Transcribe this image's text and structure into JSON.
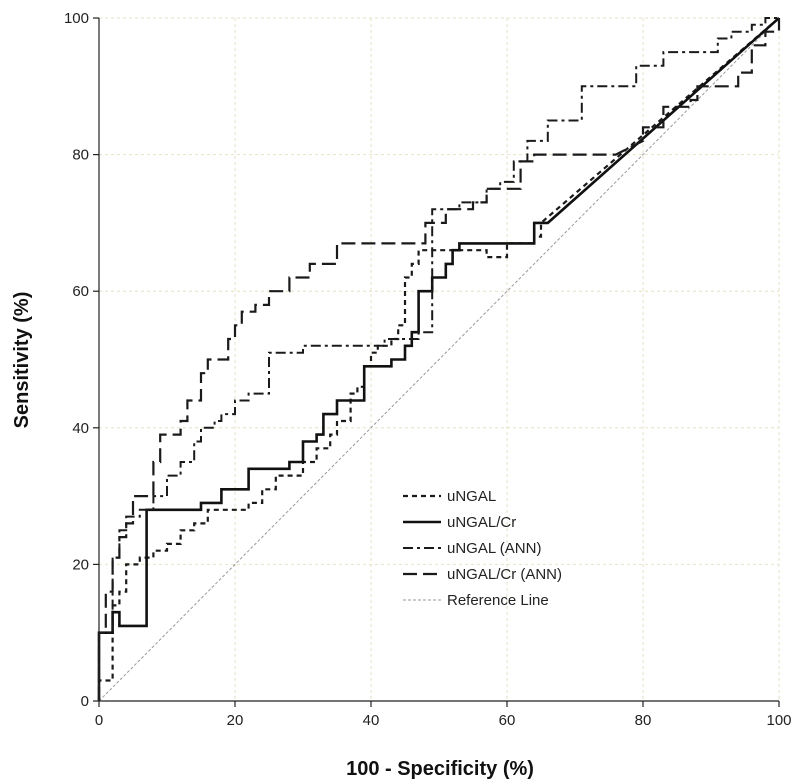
{
  "chart_data": {
    "type": "line",
    "title": "",
    "xlabel": "100 - Specificity (%)",
    "ylabel": "Sensitivity (%)",
    "xlim": [
      0,
      100
    ],
    "ylim": [
      0,
      100
    ],
    "xticks": [
      0,
      20,
      40,
      60,
      80,
      100
    ],
    "yticks": [
      0,
      20,
      40,
      60,
      80,
      100
    ],
    "grid": true,
    "grid_color": "#e6e2c4",
    "legend_position": "lower-right",
    "series": [
      {
        "name": "uNGAL",
        "dash": "short-dash",
        "color": "#1a1a1a",
        "points": [
          [
            0,
            0
          ],
          [
            0,
            3
          ],
          [
            2,
            3
          ],
          [
            2,
            14
          ],
          [
            3,
            14
          ],
          [
            3,
            16
          ],
          [
            4,
            16
          ],
          [
            4,
            20
          ],
          [
            6,
            20
          ],
          [
            6,
            21
          ],
          [
            8,
            21
          ],
          [
            8,
            22
          ],
          [
            10,
            22
          ],
          [
            10,
            23
          ],
          [
            12,
            23
          ],
          [
            12,
            25
          ],
          [
            14,
            25
          ],
          [
            14,
            26
          ],
          [
            16,
            26
          ],
          [
            16,
            28
          ],
          [
            20,
            28
          ],
          [
            22,
            28
          ],
          [
            22,
            29
          ],
          [
            24,
            29
          ],
          [
            24,
            31
          ],
          [
            26,
            31
          ],
          [
            26,
            33
          ],
          [
            30,
            33
          ],
          [
            30,
            35
          ],
          [
            32,
            35
          ],
          [
            32,
            37
          ],
          [
            34,
            37
          ],
          [
            34,
            39
          ],
          [
            35,
            39
          ],
          [
            35,
            41
          ],
          [
            37,
            41
          ],
          [
            37,
            45
          ],
          [
            38,
            45
          ],
          [
            38,
            46
          ],
          [
            39,
            46
          ],
          [
            39,
            49
          ],
          [
            40,
            49
          ],
          [
            40,
            51
          ],
          [
            41,
            51
          ],
          [
            41,
            52
          ],
          [
            43,
            52
          ],
          [
            43,
            53
          ],
          [
            44,
            53
          ],
          [
            44,
            55
          ],
          [
            45,
            55
          ],
          [
            45,
            62
          ],
          [
            46,
            62
          ],
          [
            46,
            64
          ],
          [
            47,
            64
          ],
          [
            47,
            66
          ],
          [
            55,
            66
          ],
          [
            55,
            66
          ],
          [
            57,
            66
          ],
          [
            57,
            65
          ],
          [
            60,
            65
          ],
          [
            60,
            67
          ],
          [
            64,
            67
          ],
          [
            64,
            68
          ],
          [
            65,
            68
          ],
          [
            65,
            70
          ],
          [
            100,
            100
          ]
        ]
      },
      {
        "name": "uNGAL/Cr",
        "dash": "solid",
        "color": "#111111",
        "points": [
          [
            0,
            0
          ],
          [
            0,
            10
          ],
          [
            2,
            10
          ],
          [
            2,
            13
          ],
          [
            3,
            13
          ],
          [
            3,
            11
          ],
          [
            7,
            11
          ],
          [
            7,
            28
          ],
          [
            15,
            28
          ],
          [
            15,
            29
          ],
          [
            18,
            29
          ],
          [
            18,
            31
          ],
          [
            22,
            31
          ],
          [
            22,
            34
          ],
          [
            26,
            34
          ],
          [
            26,
            34
          ],
          [
            28,
            34
          ],
          [
            28,
            35
          ],
          [
            30,
            35
          ],
          [
            30,
            38
          ],
          [
            32,
            38
          ],
          [
            32,
            39
          ],
          [
            33,
            39
          ],
          [
            33,
            42
          ],
          [
            35,
            42
          ],
          [
            35,
            44
          ],
          [
            39,
            44
          ],
          [
            39,
            49
          ],
          [
            43,
            49
          ],
          [
            43,
            50
          ],
          [
            45,
            50
          ],
          [
            45,
            52
          ],
          [
            46,
            52
          ],
          [
            46,
            54
          ],
          [
            47,
            54
          ],
          [
            47,
            60
          ],
          [
            49,
            60
          ],
          [
            49,
            62
          ],
          [
            51,
            62
          ],
          [
            51,
            64
          ],
          [
            52,
            64
          ],
          [
            52,
            66
          ],
          [
            53,
            66
          ],
          [
            53,
            67
          ],
          [
            64,
            67
          ],
          [
            64,
            70
          ],
          [
            66,
            70
          ],
          [
            100,
            100
          ]
        ]
      },
      {
        "name": "uNGAL (ANN)",
        "dash": "dash-dot",
        "color": "#1a1a1a",
        "points": [
          [
            0,
            0
          ],
          [
            0,
            10
          ],
          [
            2,
            10
          ],
          [
            2,
            21
          ],
          [
            3,
            21
          ],
          [
            3,
            25
          ],
          [
            4,
            25
          ],
          [
            4,
            27
          ],
          [
            6,
            27
          ],
          [
            6,
            28
          ],
          [
            8,
            28
          ],
          [
            8,
            30
          ],
          [
            10,
            30
          ],
          [
            10,
            33
          ],
          [
            12,
            33
          ],
          [
            12,
            35
          ],
          [
            14,
            35
          ],
          [
            14,
            38
          ],
          [
            15,
            38
          ],
          [
            15,
            40
          ],
          [
            17,
            40
          ],
          [
            17,
            41
          ],
          [
            18,
            41
          ],
          [
            18,
            42
          ],
          [
            20,
            42
          ],
          [
            20,
            44
          ],
          [
            22,
            44
          ],
          [
            22,
            45
          ],
          [
            25,
            45
          ],
          [
            25,
            46
          ],
          [
            25,
            48
          ],
          [
            25,
            51
          ],
          [
            30,
            51
          ],
          [
            30,
            52
          ],
          [
            33,
            52
          ],
          [
            33,
            52
          ],
          [
            40,
            52
          ],
          [
            42,
            52
          ],
          [
            42,
            53
          ],
          [
            47,
            53
          ],
          [
            47,
            54
          ],
          [
            49,
            54
          ],
          [
            49,
            72
          ],
          [
            53,
            72
          ],
          [
            53,
            73
          ],
          [
            57,
            73
          ],
          [
            57,
            75
          ],
          [
            59,
            75
          ],
          [
            59,
            76
          ],
          [
            61,
            76
          ],
          [
            61,
            79
          ],
          [
            63,
            79
          ],
          [
            63,
            82
          ],
          [
            66,
            82
          ],
          [
            66,
            85
          ],
          [
            71,
            85
          ],
          [
            71,
            90
          ],
          [
            79,
            90
          ],
          [
            79,
            93
          ],
          [
            83,
            93
          ],
          [
            83,
            95
          ],
          [
            87,
            95
          ],
          [
            87,
            95
          ],
          [
            89,
            95
          ],
          [
            91,
            95
          ],
          [
            91,
            97
          ],
          [
            93,
            97
          ],
          [
            93,
            98
          ],
          [
            96,
            98
          ],
          [
            96,
            99
          ],
          [
            98,
            99
          ],
          [
            98,
            100
          ],
          [
            100,
            100
          ]
        ]
      },
      {
        "name": "uNGAL/Cr (ANN)",
        "dash": "long-dash",
        "color": "#1a1a1a",
        "points": [
          [
            0,
            0
          ],
          [
            0,
            10
          ],
          [
            1,
            10
          ],
          [
            1,
            16
          ],
          [
            2,
            16
          ],
          [
            2,
            21
          ],
          [
            3,
            21
          ],
          [
            3,
            24
          ],
          [
            4,
            24
          ],
          [
            4,
            26
          ],
          [
            5,
            26
          ],
          [
            5,
            30
          ],
          [
            8,
            30
          ],
          [
            8,
            35
          ],
          [
            9,
            35
          ],
          [
            9,
            39
          ],
          [
            12,
            39
          ],
          [
            12,
            41
          ],
          [
            13,
            41
          ],
          [
            13,
            44
          ],
          [
            15,
            44
          ],
          [
            15,
            48
          ],
          [
            16,
            48
          ],
          [
            16,
            50
          ],
          [
            19,
            50
          ],
          [
            19,
            53
          ],
          [
            20,
            53
          ],
          [
            20,
            55
          ],
          [
            21,
            55
          ],
          [
            21,
            57
          ],
          [
            23,
            57
          ],
          [
            23,
            58
          ],
          [
            25,
            58
          ],
          [
            25,
            60
          ],
          [
            28,
            60
          ],
          [
            28,
            62
          ],
          [
            31,
            62
          ],
          [
            31,
            64
          ],
          [
            35,
            64
          ],
          [
            35,
            67
          ],
          [
            48,
            67
          ],
          [
            48,
            70
          ],
          [
            51,
            70
          ],
          [
            51,
            72
          ],
          [
            55,
            72
          ],
          [
            55,
            73
          ],
          [
            57,
            73
          ],
          [
            57,
            75
          ],
          [
            62,
            75
          ],
          [
            62,
            79
          ],
          [
            64,
            79
          ],
          [
            64,
            80
          ],
          [
            70,
            80
          ],
          [
            70,
            80
          ],
          [
            76,
            80
          ],
          [
            80,
            82
          ],
          [
            80,
            84
          ],
          [
            83,
            84
          ],
          [
            83,
            87
          ],
          [
            87,
            87
          ],
          [
            87,
            88
          ],
          [
            88,
            88
          ],
          [
            88,
            90
          ],
          [
            94,
            90
          ],
          [
            94,
            92
          ],
          [
            96,
            92
          ],
          [
            96,
            96
          ],
          [
            98,
            96
          ],
          [
            98,
            98
          ],
          [
            100,
            98
          ],
          [
            100,
            100
          ]
        ]
      },
      {
        "name": "Reference Line",
        "dash": "dotted-fine",
        "color": "#9a9a9a",
        "points": [
          [
            0,
            0
          ],
          [
            100,
            100
          ]
        ]
      }
    ]
  }
}
